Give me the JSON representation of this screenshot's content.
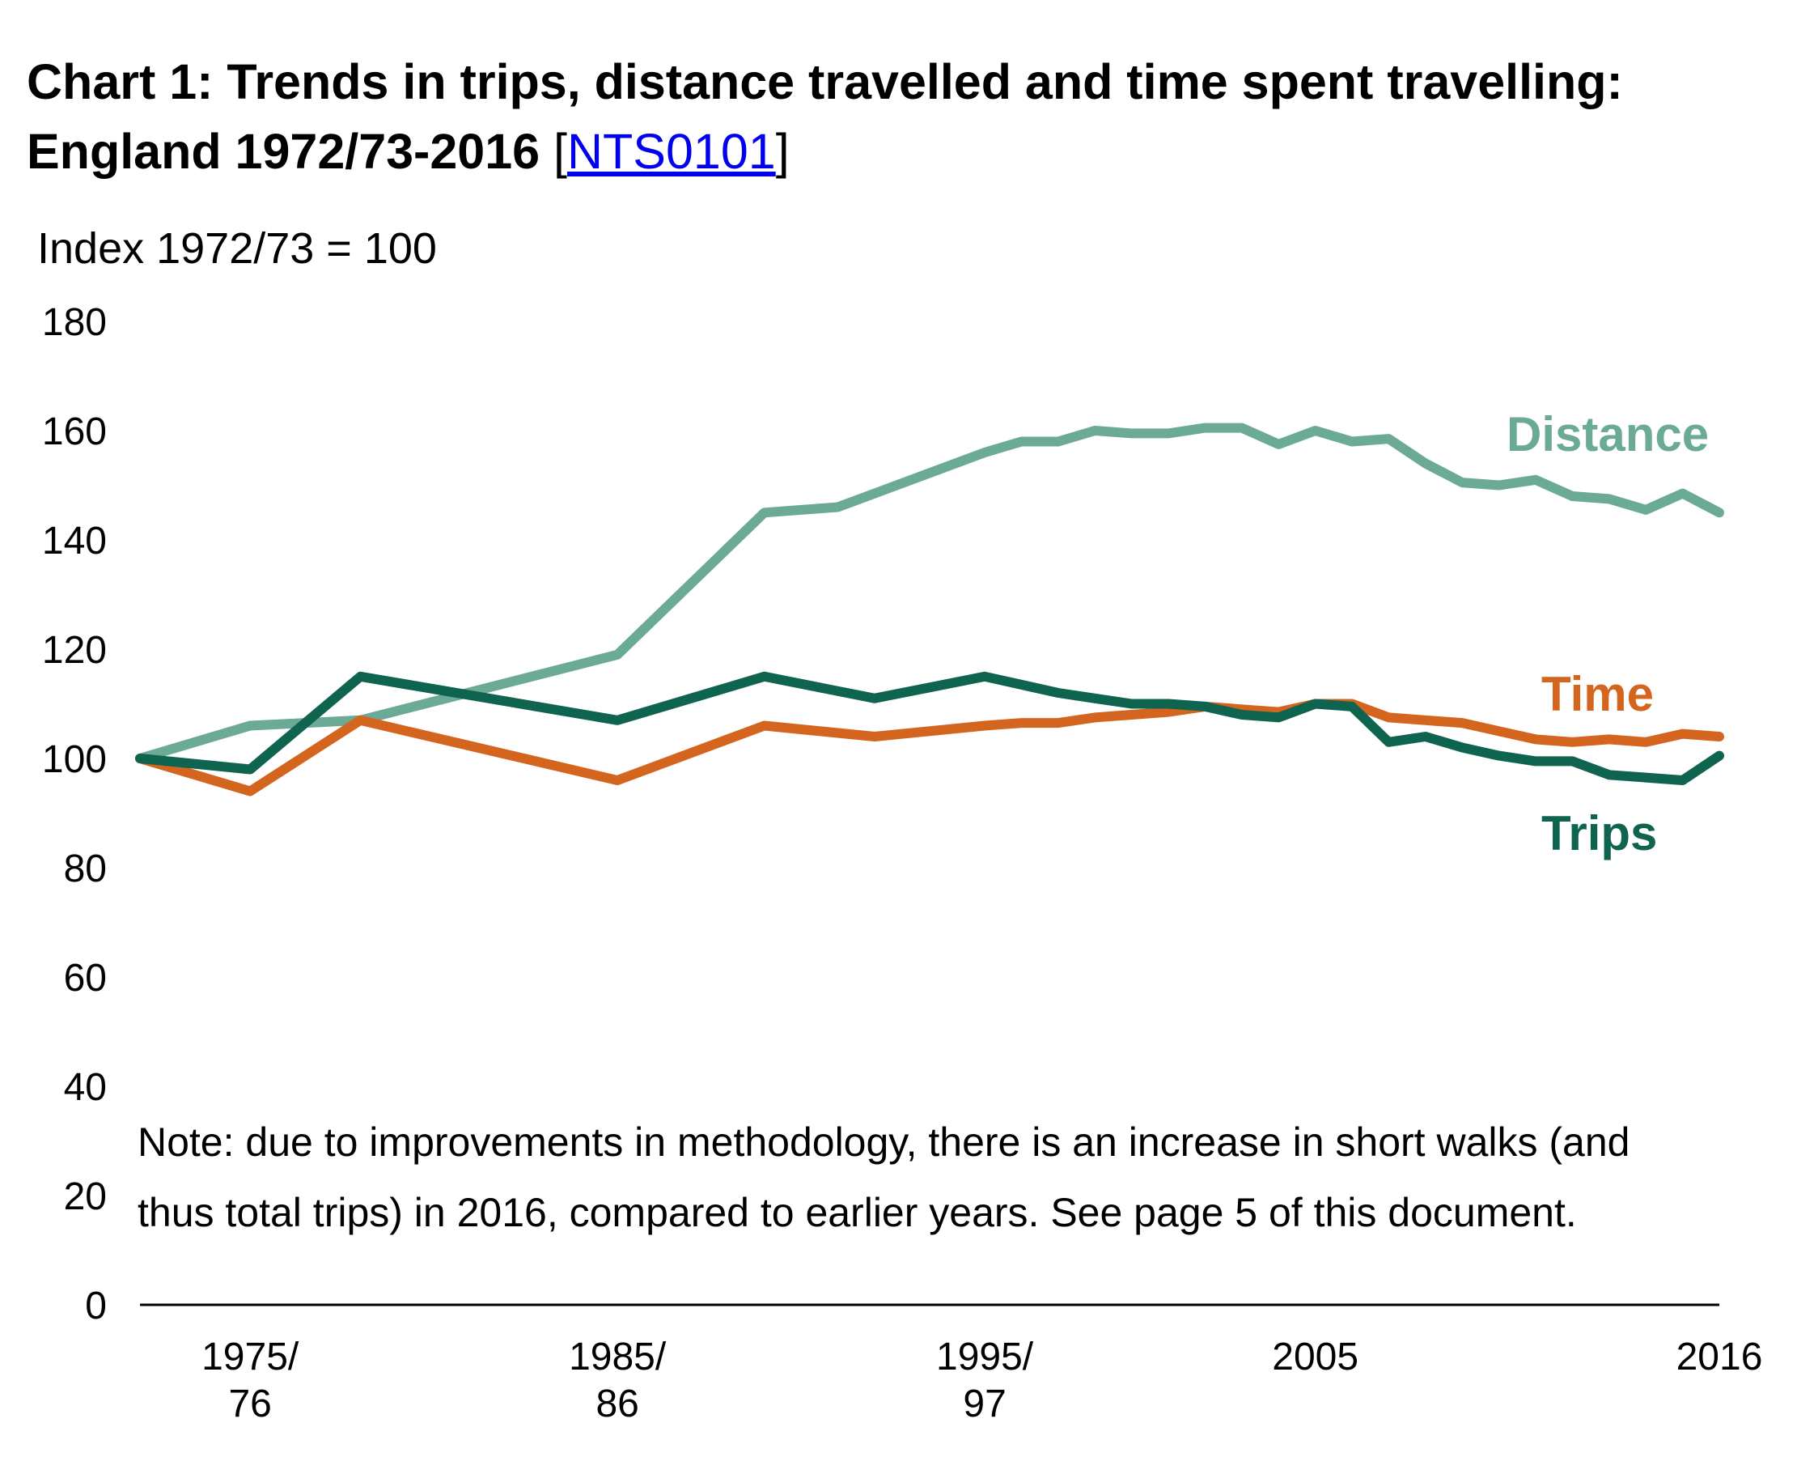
{
  "header": {
    "title_main": "Chart 1: Trends in trips, distance travelled and time spent travelling: England 1972/73-2016",
    "link_open": "[",
    "link_text": "NTS0101",
    "link_close": "]"
  },
  "note": {
    "line1": "Note: due to improvements in methodology, there is an increase in short walks (and",
    "line2": "thus total trips) in 2016, compared to earlier years. See page 5 of this document."
  },
  "chart_data": {
    "type": "line",
    "title": "Chart 1: Trends in trips, distance travelled and time spent travelling: England 1972/73-2016",
    "ylabel": "Index 1972/73 = 100",
    "ylim": [
      0,
      180
    ],
    "yticks": [
      "0",
      "20",
      "40",
      "60",
      "80",
      "100",
      "120",
      "140",
      "160",
      "180"
    ],
    "xlim": [
      1973,
      2016
    ],
    "xticks": [
      {
        "x": 1976,
        "lines": [
          "1975/",
          "76"
        ]
      },
      {
        "x": 1986,
        "lines": [
          "1985/",
          "86"
        ]
      },
      {
        "x": 1996,
        "lines": [
          "1995/",
          "97"
        ]
      },
      {
        "x": 2005,
        "lines": [
          "2005"
        ]
      },
      {
        "x": 2016,
        "lines": [
          "2016"
        ]
      }
    ],
    "grid": false,
    "colors": {
      "Distance": "#6aaa96",
      "Time": "#d4651e",
      "Trips": "#0f6450"
    },
    "series": [
      {
        "name": "Distance",
        "x": [
          1973,
          1976,
          1979,
          1986,
          1990,
          1992,
          1994,
          1996,
          1997,
          1998,
          1999,
          2000,
          2001,
          2002,
          2003,
          2004,
          2005,
          2006,
          2007,
          2008,
          2009,
          2010,
          2011,
          2012,
          2013,
          2014,
          2015,
          2016
        ],
        "values": [
          100,
          106,
          107,
          119,
          145,
          146,
          151,
          156,
          158,
          158,
          160,
          159.5,
          159.5,
          160.5,
          160.5,
          157.5,
          160,
          158,
          158.5,
          154,
          150.5,
          150,
          151,
          148,
          147.5,
          145.5,
          148.5,
          145
        ]
      },
      {
        "name": "Time",
        "x": [
          1973,
          1976,
          1979,
          1986,
          1990,
          1993,
          1996,
          1997,
          1998,
          1999,
          2000,
          2001,
          2002,
          2003,
          2004,
          2005,
          2006,
          2007,
          2008,
          2009,
          2010,
          2011,
          2012,
          2013,
          2014,
          2015,
          2016
        ],
        "values": [
          100,
          94,
          107,
          96,
          106,
          104,
          106,
          106.5,
          106.5,
          107.5,
          108,
          108.5,
          109.5,
          109,
          108.5,
          110,
          110,
          107.5,
          107,
          106.5,
          105,
          103.5,
          103,
          103.5,
          103,
          104.5,
          104
        ]
      },
      {
        "name": "Trips",
        "x": [
          1973,
          1976,
          1979,
          1986,
          1990,
          1993,
          1996,
          1997,
          1998,
          1999,
          2000,
          2001,
          2002,
          2003,
          2004,
          2005,
          2006,
          2007,
          2008,
          2009,
          2010,
          2011,
          2012,
          2013,
          2014,
          2015,
          2016
        ],
        "values": [
          100,
          98,
          115,
          107,
          115,
          111,
          115,
          113.5,
          112,
          111,
          110,
          110,
          109.5,
          108,
          107.5,
          110,
          109.5,
          103,
          104,
          102,
          100.5,
          99.5,
          99.5,
          97,
          96.5,
          96,
          100.5
        ]
      }
    ]
  }
}
